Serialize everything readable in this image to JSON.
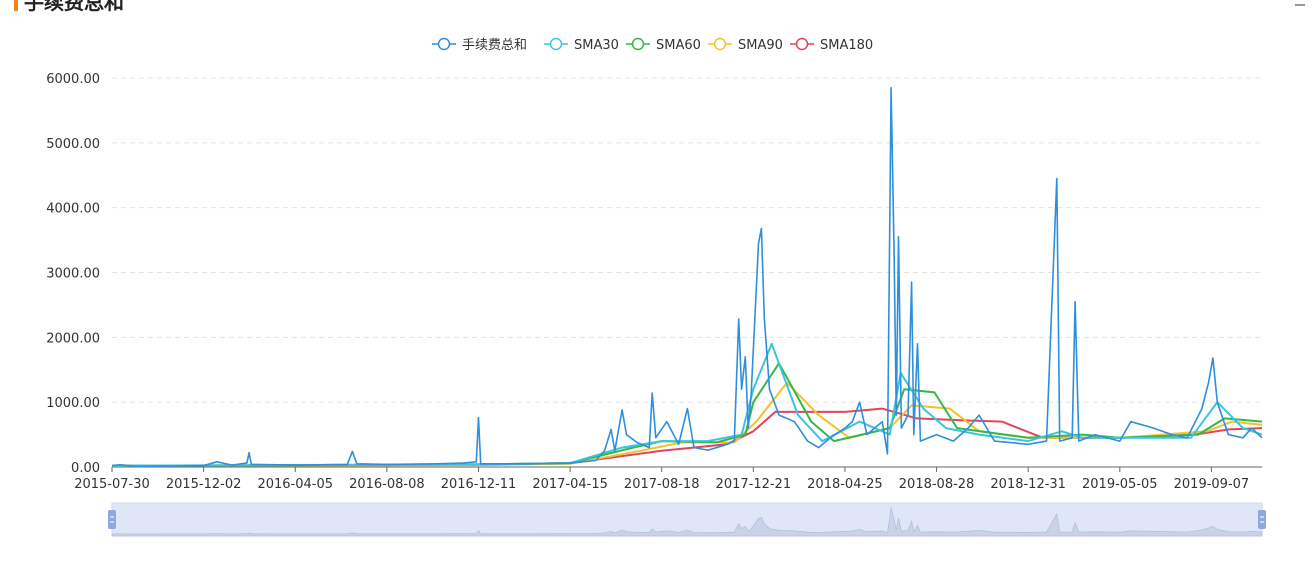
{
  "title": "手续费总和",
  "colors": {
    "accent": "#f5821f",
    "sum": "#2e8fdc",
    "sma30": "#3cc3e0",
    "sma60": "#35b74a",
    "sma90": "#f2c22b",
    "sma180": "#e0455a",
    "slider_fill": "#dfe6f7",
    "slider_handle": "#8fa7e0"
  },
  "chart_data": {
    "type": "line",
    "title": "",
    "xlabel": "",
    "ylabel": "",
    "ylim": [
      0,
      6000
    ],
    "yticks": [
      "0.00",
      "1000.00",
      "2000.00",
      "3000.00",
      "4000.00",
      "5000.00",
      "6000.00"
    ],
    "x_start": "2015-07-30",
    "x_end": "2019-11-15",
    "xtick_labels": [
      "2015-07-30",
      "2015-12-02",
      "2016-04-05",
      "2016-08-08",
      "2016-12-11",
      "2017-04-15",
      "2017-08-18",
      "2017-12-21",
      "2018-04-25",
      "2018-08-28",
      "2018-12-31",
      "2019-05-05",
      "2019-09-07"
    ],
    "legend_position": "top-center",
    "grid": "horizontal dashed",
    "series": [
      {
        "name": "手续费总和",
        "key": "sum",
        "points": [
          [
            "2015-07-30",
            20
          ],
          [
            "2015-08-10",
            35
          ],
          [
            "2015-09-01",
            10
          ],
          [
            "2015-10-15",
            15
          ],
          [
            "2015-12-02",
            20
          ],
          [
            "2015-12-20",
            80
          ],
          [
            "2016-01-10",
            30
          ],
          [
            "2016-01-30",
            60
          ],
          [
            "2016-02-02",
            220
          ],
          [
            "2016-02-05",
            40
          ],
          [
            "2016-04-05",
            30
          ],
          [
            "2016-06-15",
            40
          ],
          [
            "2016-06-22",
            240
          ],
          [
            "2016-06-28",
            50
          ],
          [
            "2016-08-08",
            40
          ],
          [
            "2016-10-15",
            50
          ],
          [
            "2016-11-20",
            60
          ],
          [
            "2016-12-08",
            80
          ],
          [
            "2016-12-11",
            760
          ],
          [
            "2016-12-14",
            50
          ],
          [
            "2017-02-15",
            50
          ],
          [
            "2017-04-15",
            60
          ],
          [
            "2017-05-20",
            100
          ],
          [
            "2017-06-01",
            250
          ],
          [
            "2017-06-10",
            580
          ],
          [
            "2017-06-15",
            250
          ],
          [
            "2017-06-25",
            880
          ],
          [
            "2017-07-01",
            500
          ],
          [
            "2017-07-15",
            380
          ],
          [
            "2017-08-01",
            300
          ],
          [
            "2017-08-05",
            1140
          ],
          [
            "2017-08-10",
            450
          ],
          [
            "2017-08-25",
            700
          ],
          [
            "2017-09-10",
            350
          ],
          [
            "2017-09-22",
            900
          ],
          [
            "2017-10-01",
            300
          ],
          [
            "2017-10-20",
            260
          ],
          [
            "2017-11-10",
            330
          ],
          [
            "2017-11-25",
            400
          ],
          [
            "2017-12-01",
            2280
          ],
          [
            "2017-12-05",
            1200
          ],
          [
            "2017-12-10",
            1700
          ],
          [
            "2017-12-14",
            600
          ],
          [
            "2017-12-18",
            1100
          ],
          [
            "2017-12-28",
            3450
          ],
          [
            "2018-01-01",
            3680
          ],
          [
            "2018-01-05",
            2300
          ],
          [
            "2018-01-12",
            1200
          ],
          [
            "2018-01-25",
            800
          ],
          [
            "2018-02-15",
            700
          ],
          [
            "2018-03-05",
            400
          ],
          [
            "2018-03-20",
            300
          ],
          [
            "2018-04-05",
            450
          ],
          [
            "2018-04-25",
            600
          ],
          [
            "2018-05-05",
            700
          ],
          [
            "2018-05-15",
            1000
          ],
          [
            "2018-05-25",
            500
          ],
          [
            "2018-06-15",
            700
          ],
          [
            "2018-06-22",
            200
          ],
          [
            "2018-06-27",
            5850
          ],
          [
            "2018-07-01",
            3300
          ],
          [
            "2018-07-04",
            800
          ],
          [
            "2018-07-07",
            3550
          ],
          [
            "2018-07-11",
            600
          ],
          [
            "2018-07-20",
            800
          ],
          [
            "2018-07-25",
            2850
          ],
          [
            "2018-07-28",
            500
          ],
          [
            "2018-08-02",
            1900
          ],
          [
            "2018-08-06",
            400
          ],
          [
            "2018-08-28",
            500
          ],
          [
            "2018-09-20",
            400
          ],
          [
            "2018-10-10",
            600
          ],
          [
            "2018-10-25",
            800
          ],
          [
            "2018-11-15",
            400
          ],
          [
            "2018-12-31",
            350
          ],
          [
            "2019-01-25",
            400
          ],
          [
            "2019-02-08",
            4450
          ],
          [
            "2019-02-12",
            400
          ],
          [
            "2019-03-01",
            450
          ],
          [
            "2019-03-05",
            2550
          ],
          [
            "2019-03-10",
            400
          ],
          [
            "2019-04-01",
            500
          ],
          [
            "2019-05-05",
            400
          ],
          [
            "2019-05-20",
            700
          ],
          [
            "2019-06-20",
            600
          ],
          [
            "2019-07-15",
            500
          ],
          [
            "2019-08-05",
            450
          ],
          [
            "2019-08-25",
            900
          ],
          [
            "2019-09-03",
            1300
          ],
          [
            "2019-09-09",
            1680
          ],
          [
            "2019-09-15",
            1000
          ],
          [
            "2019-09-30",
            500
          ],
          [
            "2019-10-20",
            450
          ],
          [
            "2019-11-01",
            600
          ],
          [
            "2019-11-15",
            450
          ]
        ]
      },
      {
        "name": "SMA30",
        "key": "sma30",
        "points": [
          [
            "2015-07-30",
            20
          ],
          [
            "2016-12-11",
            40
          ],
          [
            "2017-04-15",
            60
          ],
          [
            "2017-06-25",
            300
          ],
          [
            "2017-08-18",
            400
          ],
          [
            "2017-10-20",
            400
          ],
          [
            "2017-12-05",
            500
          ],
          [
            "2017-12-21",
            1200
          ],
          [
            "2018-01-15",
            1900
          ],
          [
            "2018-02-20",
            800
          ],
          [
            "2018-03-25",
            400
          ],
          [
            "2018-05-15",
            700
          ],
          [
            "2018-06-25",
            500
          ],
          [
            "2018-07-10",
            1450
          ],
          [
            "2018-08-10",
            900
          ],
          [
            "2018-09-10",
            600
          ],
          [
            "2018-10-25",
            500
          ],
          [
            "2018-12-31",
            400
          ],
          [
            "2019-02-15",
            550
          ],
          [
            "2019-03-15",
            450
          ],
          [
            "2019-05-05",
            450
          ],
          [
            "2019-08-10",
            450
          ],
          [
            "2019-09-15",
            1000
          ],
          [
            "2019-10-20",
            600
          ],
          [
            "2019-11-15",
            500
          ]
        ]
      },
      {
        "name": "SMA60",
        "key": "sma60",
        "points": [
          [
            "2015-07-30",
            20
          ],
          [
            "2016-12-11",
            40
          ],
          [
            "2017-04-15",
            60
          ],
          [
            "2017-07-10",
            300
          ],
          [
            "2017-08-18",
            400
          ],
          [
            "2017-11-01",
            380
          ],
          [
            "2017-12-10",
            500
          ],
          [
            "2017-12-21",
            1000
          ],
          [
            "2018-01-25",
            1600
          ],
          [
            "2018-03-10",
            700
          ],
          [
            "2018-04-10",
            400
          ],
          [
            "2018-06-25",
            600
          ],
          [
            "2018-07-15",
            1200
          ],
          [
            "2018-08-25",
            1150
          ],
          [
            "2018-09-25",
            600
          ],
          [
            "2018-12-31",
            450
          ],
          [
            "2019-03-15",
            500
          ],
          [
            "2019-05-05",
            450
          ],
          [
            "2019-08-20",
            500
          ],
          [
            "2019-09-25",
            750
          ],
          [
            "2019-11-15",
            700
          ]
        ]
      },
      {
        "name": "SMA90",
        "key": "sma90",
        "points": [
          [
            "2015-07-30",
            20
          ],
          [
            "2016-12-11",
            30
          ],
          [
            "2017-04-15",
            50
          ],
          [
            "2017-07-20",
            250
          ],
          [
            "2017-09-15",
            380
          ],
          [
            "2017-11-25",
            380
          ],
          [
            "2017-12-25",
            700
          ],
          [
            "2018-02-05",
            1300
          ],
          [
            "2018-03-20",
            800
          ],
          [
            "2018-05-01",
            450
          ],
          [
            "2018-06-25",
            600
          ],
          [
            "2018-07-25",
            950
          ],
          [
            "2018-09-15",
            900
          ],
          [
            "2018-10-25",
            550
          ],
          [
            "2018-12-31",
            450
          ],
          [
            "2019-05-05",
            450
          ],
          [
            "2019-09-01",
            550
          ],
          [
            "2019-10-05",
            700
          ],
          [
            "2019-11-15",
            650
          ]
        ]
      },
      {
        "name": "SMA180",
        "key": "sma180",
        "points": [
          [
            "2015-07-30",
            20
          ],
          [
            "2016-08-08",
            30
          ],
          [
            "2016-12-11",
            40
          ],
          [
            "2017-04-15",
            60
          ],
          [
            "2017-08-18",
            250
          ],
          [
            "2017-11-15",
            350
          ],
          [
            "2017-12-21",
            550
          ],
          [
            "2018-01-20",
            850
          ],
          [
            "2018-04-25",
            850
          ],
          [
            "2018-06-15",
            900
          ],
          [
            "2018-08-01",
            750
          ],
          [
            "2018-10-01",
            720
          ],
          [
            "2018-11-25",
            700
          ],
          [
            "2019-01-20",
            450
          ],
          [
            "2019-05-05",
            450
          ],
          [
            "2019-08-15",
            500
          ],
          [
            "2019-10-01",
            580
          ],
          [
            "2019-11-15",
            600
          ]
        ]
      }
    ]
  }
}
